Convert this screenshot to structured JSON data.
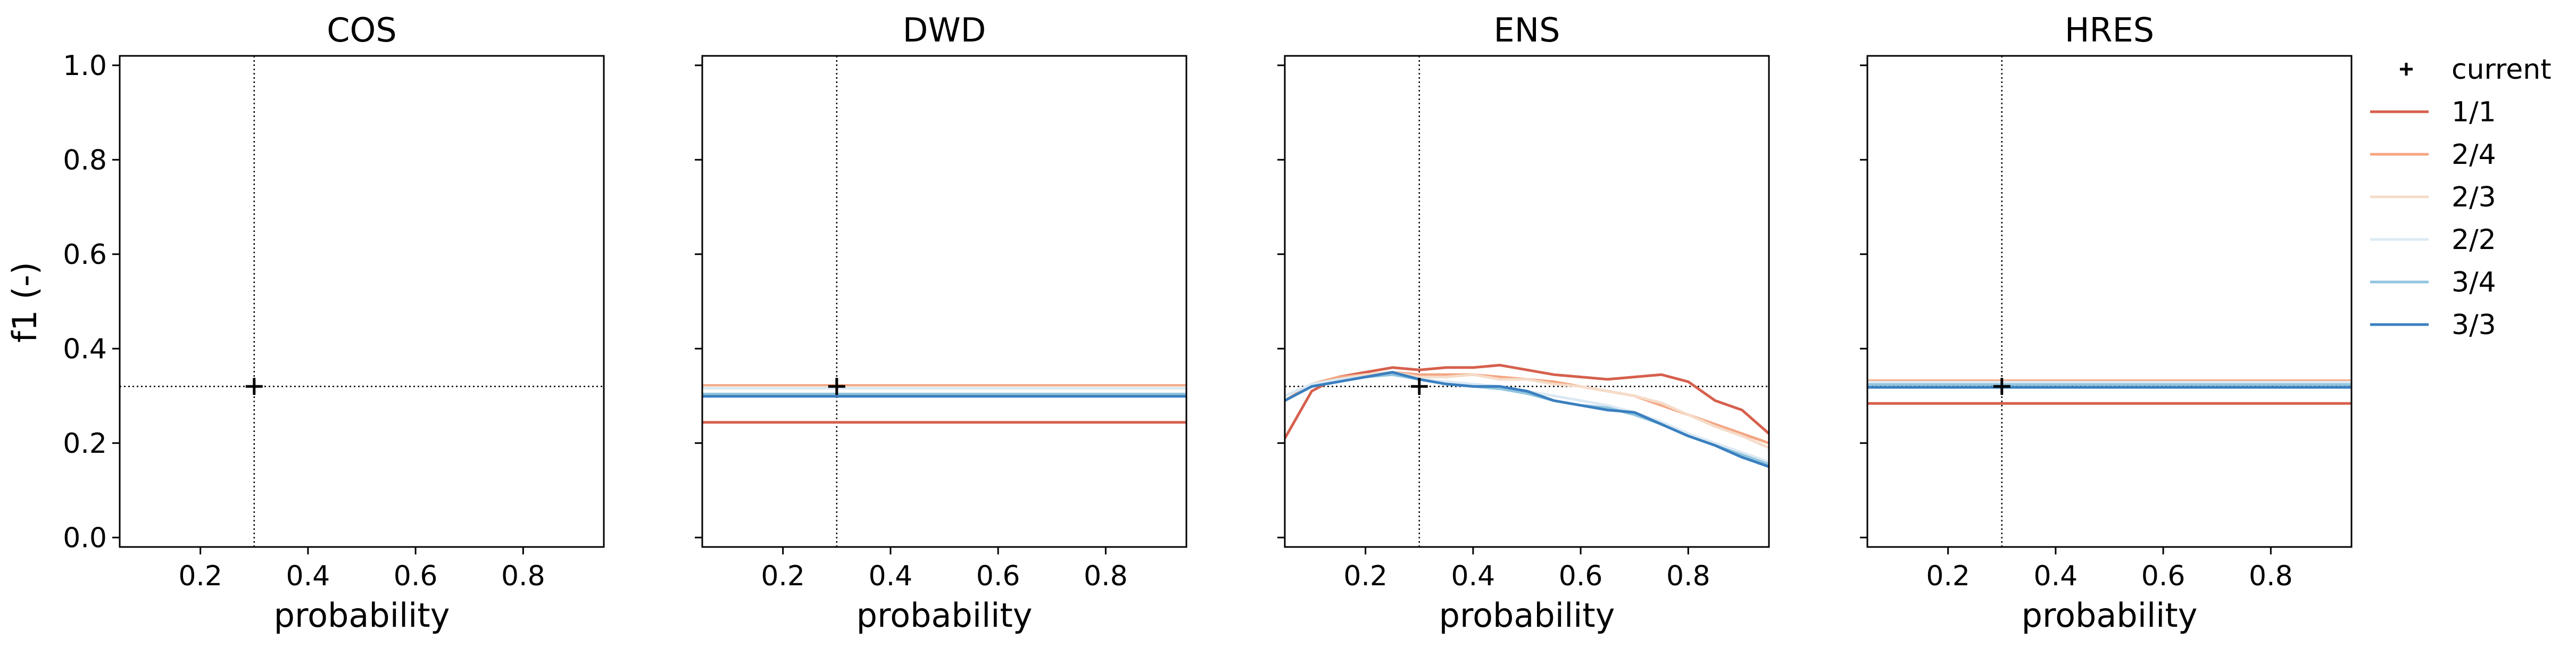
{
  "figure": {
    "ylabel": "f1 (-)",
    "xlabel": "probability"
  },
  "legend": {
    "placement": "right",
    "entries": [
      {
        "label": "current",
        "marker": "plus",
        "color": "#000000"
      },
      {
        "label": "1/1",
        "color": "#d6604d"
      },
      {
        "label": "2/4",
        "color": "#f4a582"
      },
      {
        "label": "2/3",
        "color": "#f5dcc9"
      },
      {
        "label": "2/2",
        "color": "#dce9f3"
      },
      {
        "label": "3/4",
        "color": "#92c5de"
      },
      {
        "label": "3/3",
        "color": "#3a7fbf"
      }
    ]
  },
  "chart_data": [
    {
      "type": "line",
      "title": "COS",
      "xlabel": "probability",
      "ylabel": "f1 (-)",
      "xlim": [
        0.05,
        0.95
      ],
      "ylim": [
        -0.02,
        1.02
      ],
      "xticks": [
        "0.2",
        "0.4",
        "0.6",
        "0.8"
      ],
      "yticks": [
        "0.0",
        "0.2",
        "0.4",
        "0.6",
        "0.8",
        "1.0"
      ],
      "current": {
        "x": 0.3,
        "y": 0.32
      },
      "series": []
    },
    {
      "type": "line",
      "title": "DWD",
      "xlabel": "probability",
      "ylabel": "",
      "xlim": [
        0.05,
        0.95
      ],
      "ylim": [
        -0.02,
        1.02
      ],
      "xticks": [
        "0.2",
        "0.4",
        "0.6",
        "0.8"
      ],
      "yticks": [],
      "current": {
        "x": 0.3,
        "y": 0.32
      },
      "series": [
        {
          "name": "1/1",
          "x": [
            0.05,
            0.95
          ],
          "y": [
            0.244,
            0.244
          ]
        },
        {
          "name": "2/4",
          "x": [
            0.05,
            0.95
          ],
          "y": [
            0.322,
            0.322
          ]
        },
        {
          "name": "2/3",
          "x": [
            0.05,
            0.95
          ],
          "y": [
            0.318,
            0.318
          ]
        },
        {
          "name": "2/2",
          "x": [
            0.05,
            0.95
          ],
          "y": [
            0.316,
            0.316
          ]
        },
        {
          "name": "3/4",
          "x": [
            0.05,
            0.95
          ],
          "y": [
            0.304,
            0.304
          ]
        },
        {
          "name": "3/3",
          "x": [
            0.05,
            0.95
          ],
          "y": [
            0.299,
            0.299
          ]
        }
      ]
    },
    {
      "type": "line",
      "title": "ENS",
      "xlabel": "probability",
      "ylabel": "",
      "xlim": [
        0.05,
        0.95
      ],
      "ylim": [
        -0.02,
        1.02
      ],
      "xticks": [
        "0.2",
        "0.4",
        "0.6",
        "0.8"
      ],
      "yticks": [],
      "current": {
        "x": 0.3,
        "y": 0.32
      },
      "series": [
        {
          "name": "1/1",
          "x": [
            0.05,
            0.1,
            0.15,
            0.2,
            0.25,
            0.3,
            0.35,
            0.4,
            0.45,
            0.5,
            0.55,
            0.6,
            0.65,
            0.7,
            0.75,
            0.8,
            0.85,
            0.9,
            0.95
          ],
          "y": [
            0.21,
            0.31,
            0.34,
            0.35,
            0.36,
            0.355,
            0.36,
            0.36,
            0.365,
            0.355,
            0.345,
            0.34,
            0.335,
            0.34,
            0.345,
            0.33,
            0.29,
            0.27,
            0.22
          ]
        },
        {
          "name": "2/4",
          "x": [
            0.05,
            0.1,
            0.15,
            0.2,
            0.25,
            0.3,
            0.35,
            0.4,
            0.45,
            0.5,
            0.55,
            0.6,
            0.65,
            0.7,
            0.75,
            0.8,
            0.85,
            0.9,
            0.95
          ],
          "y": [
            0.29,
            0.325,
            0.34,
            0.345,
            0.35,
            0.345,
            0.345,
            0.345,
            0.34,
            0.335,
            0.33,
            0.32,
            0.31,
            0.3,
            0.28,
            0.26,
            0.24,
            0.22,
            0.2
          ]
        },
        {
          "name": "2/3",
          "x": [
            0.05,
            0.1,
            0.15,
            0.2,
            0.25,
            0.3,
            0.35,
            0.4,
            0.45,
            0.5,
            0.55,
            0.6,
            0.65,
            0.7,
            0.75,
            0.8,
            0.85,
            0.9,
            0.95
          ],
          "y": [
            0.3,
            0.325,
            0.335,
            0.345,
            0.35,
            0.34,
            0.34,
            0.345,
            0.335,
            0.335,
            0.325,
            0.32,
            0.31,
            0.3,
            0.285,
            0.26,
            0.235,
            0.215,
            0.19
          ]
        },
        {
          "name": "2/2",
          "x": [
            0.05,
            0.1,
            0.15,
            0.2,
            0.25,
            0.3,
            0.35,
            0.4,
            0.45,
            0.5,
            0.55,
            0.6,
            0.65,
            0.7,
            0.75,
            0.8,
            0.85,
            0.9,
            0.95
          ],
          "y": [
            0.3,
            0.325,
            0.335,
            0.34,
            0.345,
            0.335,
            0.33,
            0.325,
            0.32,
            0.31,
            0.3,
            0.29,
            0.28,
            0.265,
            0.245,
            0.22,
            0.2,
            0.18,
            0.16
          ]
        },
        {
          "name": "3/4",
          "x": [
            0.05,
            0.1,
            0.15,
            0.2,
            0.25,
            0.3,
            0.35,
            0.4,
            0.45,
            0.5,
            0.55,
            0.6,
            0.65,
            0.7,
            0.75,
            0.8,
            0.85,
            0.9,
            0.95
          ],
          "y": [
            0.29,
            0.32,
            0.33,
            0.34,
            0.345,
            0.335,
            0.325,
            0.32,
            0.315,
            0.305,
            0.29,
            0.28,
            0.275,
            0.26,
            0.24,
            0.215,
            0.195,
            0.175,
            0.155
          ]
        },
        {
          "name": "3/3",
          "x": [
            0.05,
            0.1,
            0.15,
            0.2,
            0.25,
            0.3,
            0.35,
            0.4,
            0.45,
            0.5,
            0.55,
            0.6,
            0.65,
            0.7,
            0.75,
            0.8,
            0.85,
            0.9,
            0.95
          ],
          "y": [
            0.29,
            0.32,
            0.33,
            0.34,
            0.35,
            0.335,
            0.325,
            0.32,
            0.32,
            0.31,
            0.29,
            0.28,
            0.27,
            0.265,
            0.24,
            0.215,
            0.195,
            0.17,
            0.15
          ]
        }
      ]
    },
    {
      "type": "line",
      "title": "HRES",
      "xlabel": "probability",
      "ylabel": "",
      "xlim": [
        0.05,
        0.95
      ],
      "ylim": [
        -0.02,
        1.02
      ],
      "xticks": [
        "0.2",
        "0.4",
        "0.6",
        "0.8"
      ],
      "yticks": [],
      "current": {
        "x": 0.3,
        "y": 0.32
      },
      "series": [
        {
          "name": "1/1",
          "x": [
            0.05,
            0.95
          ],
          "y": [
            0.284,
            0.284
          ]
        },
        {
          "name": "2/4",
          "x": [
            0.05,
            0.95
          ],
          "y": [
            0.332,
            0.332
          ]
        },
        {
          "name": "2/3",
          "x": [
            0.05,
            0.95
          ],
          "y": [
            0.327,
            0.327
          ]
        },
        {
          "name": "2/2",
          "x": [
            0.05,
            0.95
          ],
          "y": [
            0.329,
            0.329
          ]
        },
        {
          "name": "3/4",
          "x": [
            0.05,
            0.95
          ],
          "y": [
            0.324,
            0.324
          ]
        },
        {
          "name": "3/3",
          "x": [
            0.05,
            0.95
          ],
          "y": [
            0.318,
            0.318
          ]
        }
      ]
    }
  ]
}
